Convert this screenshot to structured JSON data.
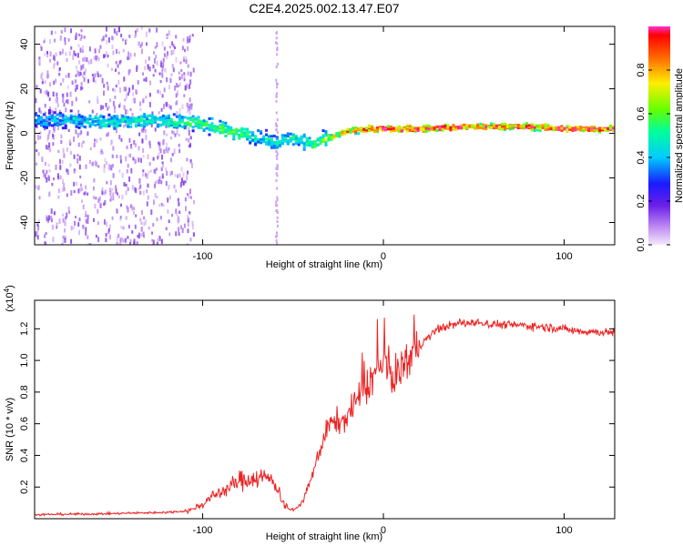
{
  "title": "C2E4.2025.002.13.47.E07",
  "chart_data": [
    {
      "type": "heatmap",
      "name": "spectrogram",
      "xlabel": "Height of straight line (km)",
      "ylabel": "Frequency (Hz)",
      "xlim": [
        -193,
        128
      ],
      "ylim": [
        -50,
        48
      ],
      "xticks": [
        -100,
        0,
        100
      ],
      "xtick_labels": [
        "-100",
        "0",
        "100"
      ],
      "yticks": [
        -40,
        -20,
        0,
        20,
        40
      ],
      "ytick_labels": [
        "-40",
        "-20",
        "0",
        "20",
        "40"
      ],
      "colorbar": {
        "label": "Normalized spectral amplitude",
        "range": [
          0,
          1
        ],
        "ticks": [
          0.0,
          0.2,
          0.4,
          0.6,
          0.8
        ],
        "tick_labels": [
          "0.0",
          "0.2",
          "0.4",
          "0.6",
          "0.8"
        ]
      },
      "ridge": {
        "x": [
          -193,
          -170,
          -150,
          -130,
          -110,
          -100,
          -90,
          -80,
          -70,
          -60,
          -50,
          -40,
          -30,
          -20,
          -10,
          0,
          20,
          50,
          80,
          100,
          128
        ],
        "freq": [
          6,
          6,
          5,
          6,
          5,
          4,
          2,
          0,
          -2,
          -4,
          -2,
          -5,
          -2,
          1,
          2,
          2,
          2,
          3,
          3,
          2,
          2
        ],
        "amplitude": [
          0.35,
          0.4,
          0.45,
          0.45,
          0.5,
          0.5,
          0.55,
          0.55,
          0.45,
          0.45,
          0.45,
          0.5,
          0.65,
          0.8,
          0.85,
          0.9,
          0.95,
          0.85,
          0.85,
          0.9,
          0.85
        ]
      }
    },
    {
      "type": "line",
      "name": "snr",
      "xlabel": "Height of straight line (km)",
      "ylabel": "SNR (10 * v/v)",
      "yscale_label": "(x10",
      "yscale_exp": "4",
      "yscale_close": ")",
      "xlim": [
        -193,
        128
      ],
      "ylim": [
        0,
        13800
      ],
      "xticks": [
        -100,
        0,
        100
      ],
      "xtick_labels": [
        "-100",
        "0",
        "100"
      ],
      "yticks": [
        2000,
        4000,
        6000,
        8000,
        10000,
        12000
      ],
      "ytick_labels": [
        "0.2",
        "0.4",
        "0.6",
        "0.8",
        "1.0",
        "1.2"
      ],
      "color": "#ee2222",
      "x": [
        -193,
        -180,
        -160,
        -140,
        -120,
        -108,
        -100,
        -95,
        -90,
        -85,
        -80,
        -75,
        -70,
        -65,
        -60,
        -55,
        -50,
        -45,
        -40,
        -35,
        -30,
        -25,
        -20,
        -15,
        -10,
        -5,
        0,
        5,
        10,
        15,
        20,
        30,
        40,
        50,
        60,
        70,
        80,
        90,
        100,
        105,
        110,
        120,
        128
      ],
      "y": [
        250,
        280,
        300,
        350,
        400,
        500,
        900,
        1400,
        1700,
        2000,
        2400,
        2500,
        2600,
        2600,
        2300,
        900,
        500,
        1000,
        2500,
        4400,
        6000,
        6100,
        6400,
        7500,
        8300,
        9100,
        9800,
        8900,
        9600,
        10300,
        10900,
        12000,
        12300,
        12400,
        12300,
        12250,
        12200,
        12100,
        12000,
        11900,
        11850,
        11800,
        11750
      ]
    }
  ]
}
